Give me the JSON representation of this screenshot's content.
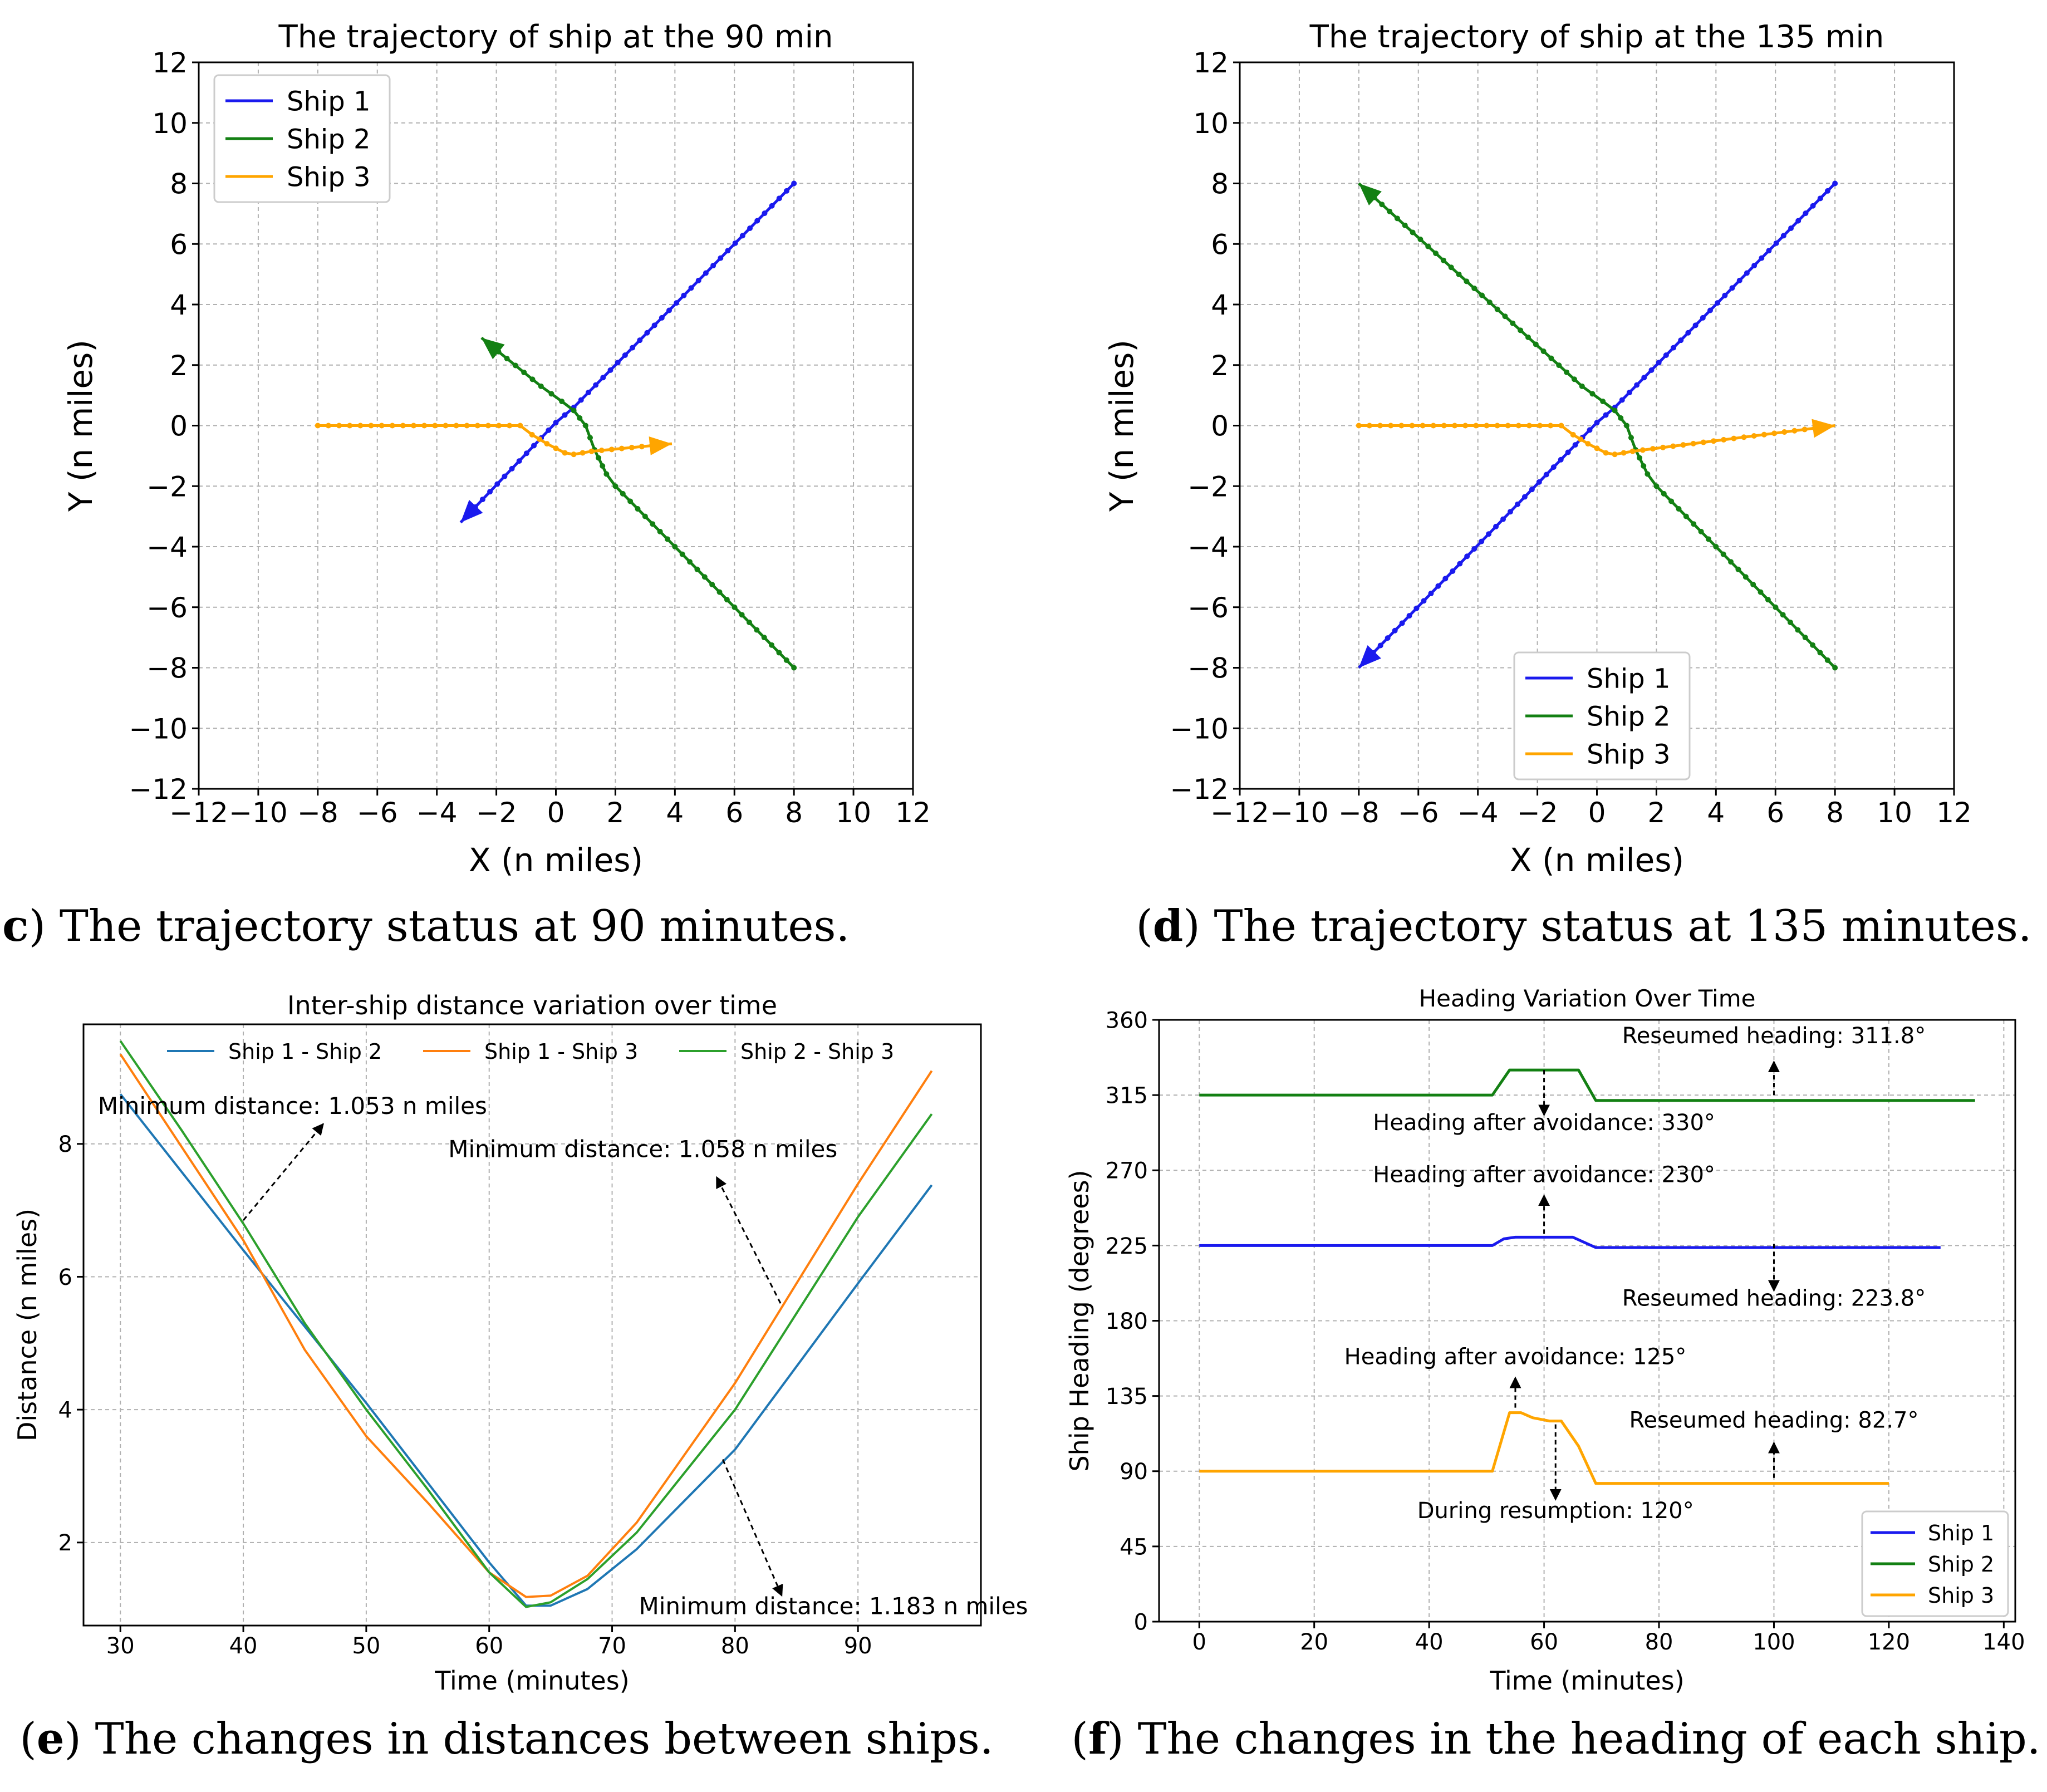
{
  "colors": {
    "ship1": "#1a1aee",
    "ship2": "#138013",
    "ship3": "#ffa500",
    "d12": "#1f77b4",
    "d13": "#ff7f0e",
    "d23": "#2ca02c",
    "grid": "#b0b0b0"
  },
  "captions": {
    "c": {
      "letter": "c",
      "text": ") The trajectory status at 90 minutes."
    },
    "d": {
      "letter": "d",
      "text": ") The trajectory status at 135 minutes."
    },
    "e": {
      "letter": "e",
      "text": ") The changes in distances between ships."
    },
    "f": {
      "letter": "f",
      "text": ") The changes in the heading of each ship."
    }
  },
  "chart_data": [
    {
      "id": "c",
      "type": "line",
      "title": "The trajectory of ship at the 90 min",
      "xlabel": "X (n miles)",
      "ylabel": "Y (n miles)",
      "xlim": [
        -12,
        12
      ],
      "ylim": [
        -12,
        12
      ],
      "xticks": [
        -12,
        -10,
        -8,
        -6,
        -4,
        -2,
        0,
        2,
        4,
        6,
        8,
        10,
        12
      ],
      "yticks": [
        -12,
        -10,
        -8,
        -6,
        -4,
        -2,
        0,
        2,
        4,
        6,
        8,
        10,
        12
      ],
      "grid": true,
      "legend": "top-left",
      "series": [
        {
          "name": "Ship 1",
          "color_key": "ship1",
          "points": [
            [
              8,
              8
            ],
            [
              0.6,
              0.6
            ],
            [
              0,
              0.1
            ],
            [
              -3.2,
              -3.2
            ]
          ]
        },
        {
          "name": "Ship 2",
          "color_key": "ship2",
          "points": [
            [
              8,
              -8
            ],
            [
              2,
              -2
            ],
            [
              1.7,
              -1.6
            ],
            [
              1.3,
              -0.8
            ],
            [
              1,
              0
            ],
            [
              0.6,
              0.5
            ],
            [
              0.2,
              0.8
            ],
            [
              -0.5,
              1.3
            ],
            [
              -2.5,
              2.9
            ]
          ]
        },
        {
          "name": "Ship 3",
          "color_key": "ship3",
          "points": [
            [
              -8,
              0
            ],
            [
              -1.2,
              0
            ],
            [
              -0.8,
              -0.3
            ],
            [
              -0.3,
              -0.6
            ],
            [
              0.3,
              -0.9
            ],
            [
              0.6,
              -0.95
            ],
            [
              1.2,
              -0.85
            ],
            [
              3.9,
              -0.6
            ]
          ]
        }
      ]
    },
    {
      "id": "d",
      "type": "line",
      "title": "The trajectory of ship at the 135 min",
      "xlabel": "X (n miles)",
      "ylabel": "Y (n miles)",
      "xlim": [
        -12,
        12
      ],
      "ylim": [
        -12,
        12
      ],
      "xticks": [
        -12,
        -10,
        -8,
        -6,
        -4,
        -2,
        0,
        2,
        4,
        6,
        8,
        10,
        12
      ],
      "yticks": [
        -12,
        -10,
        -8,
        -6,
        -4,
        -2,
        0,
        2,
        4,
        6,
        8,
        10,
        12
      ],
      "grid": true,
      "legend": "bottom-center",
      "series": [
        {
          "name": "Ship 1",
          "color_key": "ship1",
          "points": [
            [
              8,
              8
            ],
            [
              0.6,
              0.6
            ],
            [
              0,
              0.1
            ],
            [
              -8,
              -8
            ]
          ]
        },
        {
          "name": "Ship 2",
          "color_key": "ship2",
          "points": [
            [
              8,
              -8
            ],
            [
              2,
              -2
            ],
            [
              1.7,
              -1.6
            ],
            [
              1.3,
              -0.8
            ],
            [
              1,
              0
            ],
            [
              0.6,
              0.5
            ],
            [
              0.2,
              0.8
            ],
            [
              -0.5,
              1.3
            ],
            [
              -8,
              8
            ]
          ]
        },
        {
          "name": "Ship 3",
          "color_key": "ship3",
          "points": [
            [
              -8,
              0
            ],
            [
              -1.2,
              0
            ],
            [
              -0.8,
              -0.3
            ],
            [
              -0.3,
              -0.6
            ],
            [
              0.3,
              -0.9
            ],
            [
              0.6,
              -0.95
            ],
            [
              1.2,
              -0.85
            ],
            [
              8,
              0
            ]
          ]
        }
      ]
    },
    {
      "id": "e",
      "type": "line",
      "title": "Inter-ship distance variation over time",
      "xlabel": "Time (minutes)",
      "ylabel": "Distance (n miles)",
      "xlim": [
        27,
        100
      ],
      "ylim": [
        0.75,
        9.8
      ],
      "xticks": [
        30,
        40,
        50,
        60,
        70,
        80,
        90
      ],
      "yticks": [
        2,
        4,
        6,
        8
      ],
      "grid": true,
      "legend": "top (horizontal)",
      "series": [
        {
          "name": "Ship 1 - Ship 2",
          "color_key": "d12",
          "points": [
            [
              30,
              8.75
            ],
            [
              40,
              6.4
            ],
            [
              50,
              4.1
            ],
            [
              55,
              2.9
            ],
            [
              60,
              1.7
            ],
            [
              63,
              1.05
            ],
            [
              65,
              1.05
            ],
            [
              68,
              1.3
            ],
            [
              72,
              1.9
            ],
            [
              80,
              3.4
            ],
            [
              90,
              5.9
            ],
            [
              96,
              7.38
            ]
          ]
        },
        {
          "name": "Ship 1 - Ship 3",
          "color_key": "d13",
          "points": [
            [
              30,
              9.35
            ],
            [
              40,
              6.55
            ],
            [
              45,
              4.9
            ],
            [
              50,
              3.6
            ],
            [
              55,
              2.6
            ],
            [
              60,
              1.55
            ],
            [
              63,
              1.18
            ],
            [
              65,
              1.2
            ],
            [
              68,
              1.5
            ],
            [
              72,
              2.3
            ],
            [
              80,
              4.4
            ],
            [
              90,
              7.4
            ],
            [
              96,
              9.1
            ]
          ]
        },
        {
          "name": "Ship 2 - Ship 3",
          "color_key": "d23",
          "points": [
            [
              30,
              9.55
            ],
            [
              35,
              8.2
            ],
            [
              40,
              6.8
            ],
            [
              45,
              5.3
            ],
            [
              50,
              4.0
            ],
            [
              55,
              2.8
            ],
            [
              60,
              1.55
            ],
            [
              63,
              1.03
            ],
            [
              65,
              1.1
            ],
            [
              68,
              1.45
            ],
            [
              72,
              2.15
            ],
            [
              80,
              4.0
            ],
            [
              90,
              6.9
            ],
            [
              96,
              8.45
            ]
          ]
        }
      ],
      "annotations": [
        {
          "text": "Minimum distance: 1.053 n miles",
          "x": 44,
          "y": 8.45,
          "arrow_from": [
            40,
            6.85
          ],
          "arrow_to": [
            46.5,
            8.3
          ]
        },
        {
          "text": "Minimum distance: 1.058 n miles",
          "x": 72.5,
          "y": 7.8,
          "arrow_from": [
            83.7,
            5.6
          ],
          "arrow_to": [
            78.5,
            7.5
          ]
        },
        {
          "text": "Minimum distance: 1.183 n miles",
          "x": 88,
          "y": 0.92,
          "arrow_from": [
            79,
            3.25
          ],
          "arrow_to": [
            83.8,
            1.2
          ]
        }
      ]
    },
    {
      "id": "f",
      "type": "line",
      "title": "Heading Variation Over Time",
      "xlabel": "Time (minutes)",
      "ylabel": "Ship Heading (degrees)",
      "xlim": [
        -7,
        142
      ],
      "ylim": [
        0,
        360
      ],
      "xticks": [
        0,
        20,
        40,
        60,
        80,
        100,
        120,
        140
      ],
      "yticks": [
        0,
        45,
        90,
        135,
        180,
        225,
        270,
        315,
        360
      ],
      "grid": true,
      "legend": "bottom-right",
      "series": [
        {
          "name": "Ship 1",
          "color_key": "ship1",
          "points": [
            [
              0,
              225
            ],
            [
              51,
              225
            ],
            [
              53,
              229
            ],
            [
              55,
              230
            ],
            [
              65,
              230
            ],
            [
              69,
              223.8
            ],
            [
              129,
              223.8
            ]
          ]
        },
        {
          "name": "Ship 2",
          "color_key": "ship2",
          "points": [
            [
              0,
              315
            ],
            [
              51,
              315
            ],
            [
              54,
              330
            ],
            [
              66,
              330
            ],
            [
              69,
              311.8
            ],
            [
              135,
              311.8
            ]
          ]
        },
        {
          "name": "Ship 3",
          "color_key": "ship3",
          "points": [
            [
              0,
              90
            ],
            [
              51,
              90
            ],
            [
              54,
              125
            ],
            [
              56,
              125
            ],
            [
              58,
              122
            ],
            [
              61,
              120
            ],
            [
              63,
              120
            ],
            [
              66,
              105
            ],
            [
              69,
              82.7
            ],
            [
              120,
              82.7
            ]
          ]
        }
      ],
      "annotations": [
        {
          "text": "Reseumed heading: 311.8°",
          "x": 100,
          "y": 346,
          "arrow_from": [
            100,
            315
          ],
          "arrow_to": [
            100,
            335
          ]
        },
        {
          "text": "Heading after avoidance: 330°",
          "x": 60,
          "y": 294,
          "arrow_from": [
            60,
            330
          ],
          "arrow_to": [
            60,
            303
          ]
        },
        {
          "text": "Heading after avoidance: 230°",
          "x": 60,
          "y": 263,
          "arrow_from": [
            60,
            232
          ],
          "arrow_to": [
            60,
            255
          ]
        },
        {
          "text": "Reseumed heading: 223.8°",
          "x": 100,
          "y": 189,
          "arrow_from": [
            100,
            226
          ],
          "arrow_to": [
            100,
            198
          ]
        },
        {
          "text": "Heading after avoidance: 125°",
          "x": 55,
          "y": 154,
          "arrow_from": [
            55,
            128
          ],
          "arrow_to": [
            55,
            146
          ]
        },
        {
          "text": "Reseumed heading: 82.7°",
          "x": 100,
          "y": 116,
          "arrow_from": [
            100,
            86
          ],
          "arrow_to": [
            100,
            107
          ]
        },
        {
          "text": "During resumption: 120°",
          "x": 62,
          "y": 62,
          "arrow_from": [
            62,
            118
          ],
          "arrow_to": [
            62,
            73
          ]
        }
      ]
    }
  ]
}
